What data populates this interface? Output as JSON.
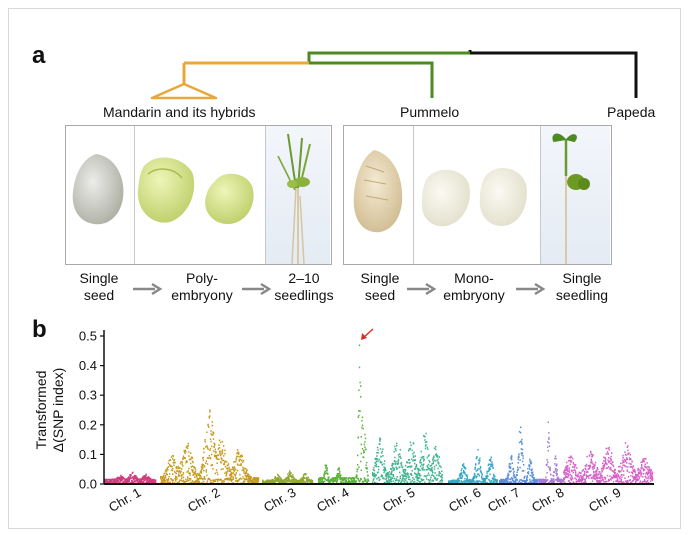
{
  "panel_a": {
    "label": "a",
    "groups": {
      "mandarin": "Mandarin and its hybrids",
      "pummelo": "Pummelo",
      "papeda": "Papeda"
    },
    "mandarin_steps": [
      "Single\nseed",
      "Poly-\nembryony",
      "2–10\nseedlings"
    ],
    "pummelo_steps": [
      "Single\nseed",
      "Mono-\nembryony",
      "Single\nseedling"
    ],
    "colors": {
      "mandarin_branch": "#e8a83a",
      "pummelo_branch": "#4e8a22",
      "papeda_branch": "#111111"
    }
  },
  "panel_b": {
    "label": "b",
    "chart_data": {
      "type": "scatter",
      "title": "",
      "ylabel_line1": "Transformed",
      "ylabel_line2": "Δ(SNP index)",
      "ylim": [
        0,
        0.5
      ],
      "yticks": [
        "0.0",
        "0.1",
        "0.2",
        "0.3",
        "0.4",
        "0.5"
      ],
      "peak": {
        "chromosome": "Chr. 4",
        "value": 0.49,
        "marker": "red arrow"
      },
      "chromosomes": [
        {
          "name": "Chr. 1",
          "color": "#cf3b7d",
          "baseline": 0.015,
          "max": 0.045
        },
        {
          "name": "Chr. 2",
          "color": "#c79a1c",
          "baseline": 0.02,
          "max": 0.25
        },
        {
          "name": "Chr. 3",
          "color": "#8fa832",
          "baseline": 0.012,
          "max": 0.045
        },
        {
          "name": "Chr. 4",
          "color": "#5cb33c",
          "baseline": 0.02,
          "max": 0.49
        },
        {
          "name": "Chr. 5",
          "color": "#3fb58c",
          "baseline": 0.03,
          "max": 0.18
        },
        {
          "name": "Chr. 6",
          "color": "#3aa6c8",
          "baseline": 0.012,
          "max": 0.12
        },
        {
          "name": "Chr. 7",
          "color": "#5b8fd6",
          "baseline": 0.015,
          "max": 0.21
        },
        {
          "name": "Chr. 8",
          "color": "#a77ad8",
          "baseline": 0.015,
          "max": 0.22
        },
        {
          "name": "Chr. 9",
          "color": "#d660c8",
          "baseline": 0.03,
          "max": 0.15
        }
      ]
    }
  }
}
